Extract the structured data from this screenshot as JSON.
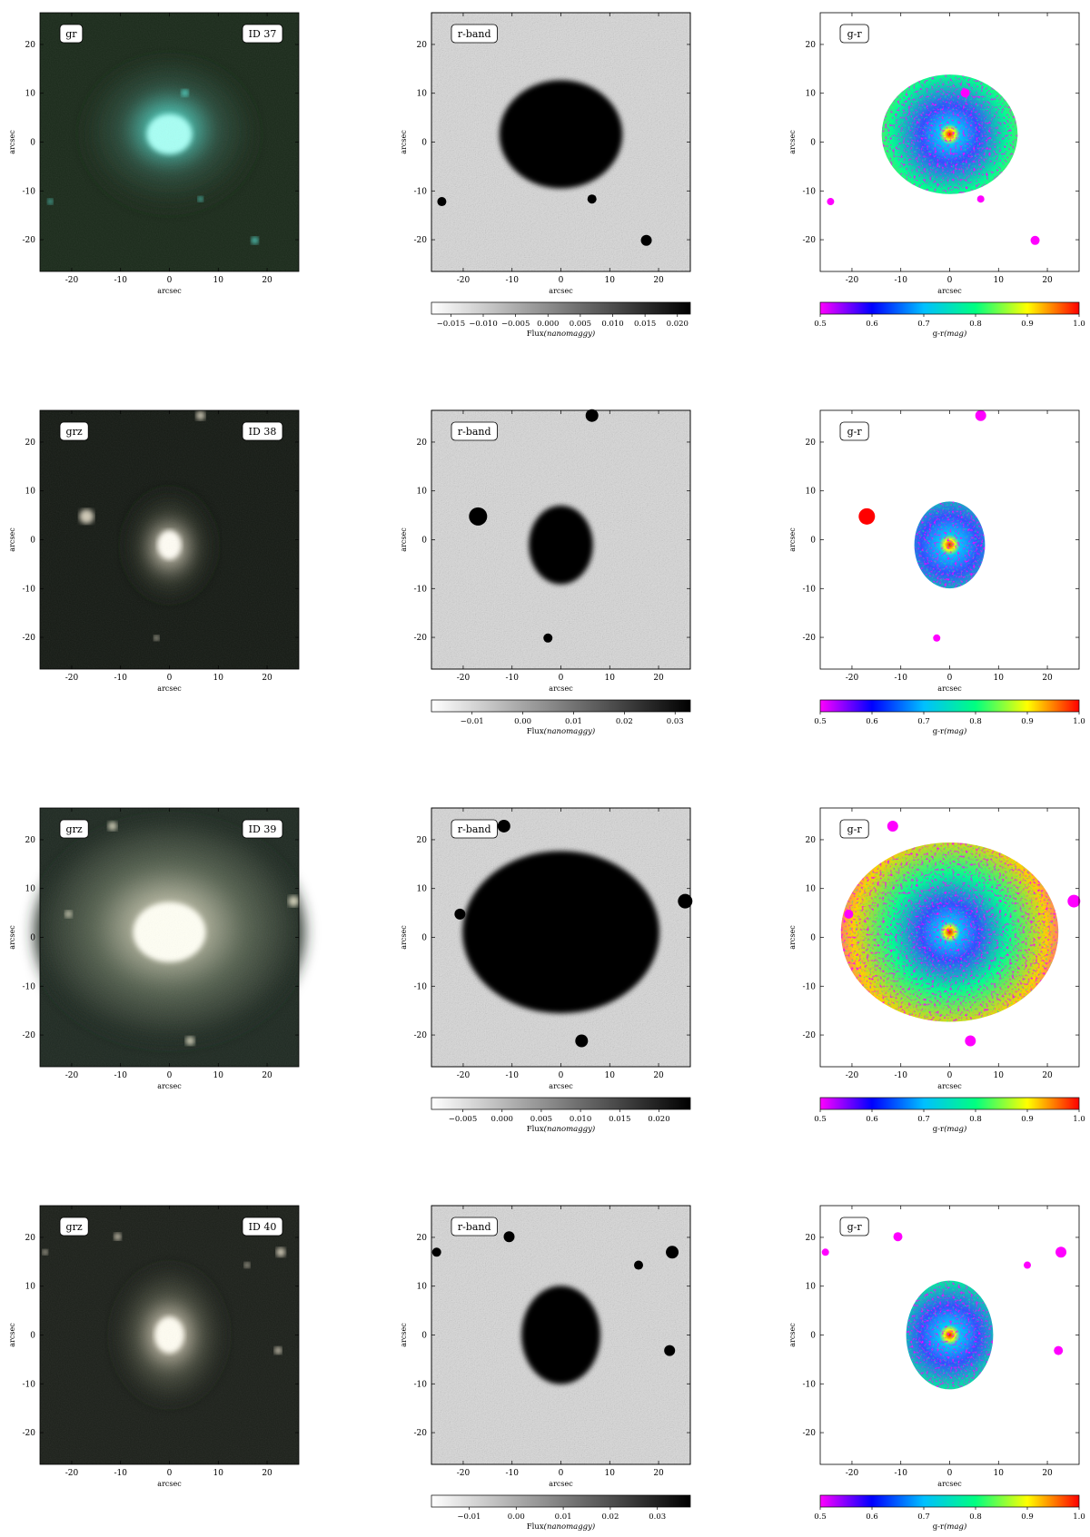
{
  "figure": {
    "rows": [
      {
        "id_label": "ID 37",
        "composite_label": "gr",
        "composite_colors": [
          "#1a2a1a",
          "#2a4a3a",
          "#4fd6c6",
          "#a8fff4"
        ],
        "rband_label": "r-band",
        "rband_cbar_ticks": [
          "-0.015",
          "-0.010",
          "-0.005",
          "0.000",
          "0.005",
          "0.010",
          "0.015",
          "0.020"
        ],
        "rband_range": [
          -0.018,
          0.022
        ],
        "gr_label": "g-r",
        "gr_cbar_ticks": [
          "0.5",
          "0.6",
          "0.7",
          "0.8",
          "0.9",
          "1.0"
        ]
      },
      {
        "id_label": "ID 38",
        "composite_label": "grz",
        "composite_colors": [
          "#151a14",
          "#33382c",
          "#cfc9b6",
          "#fffdf4"
        ],
        "rband_label": "r-band",
        "rband_cbar_ticks": [
          "-0.01",
          "0.00",
          "0.01",
          "0.02",
          "0.03"
        ],
        "rband_range": [
          -0.018,
          0.033
        ],
        "gr_label": "g-r",
        "gr_cbar_ticks": [
          "0.5",
          "0.6",
          "0.7",
          "0.8",
          "0.9",
          "1.0"
        ]
      },
      {
        "id_label": "ID 39",
        "composite_label": "grz",
        "composite_colors": [
          "#1f2a22",
          "#586452",
          "#cfcdb6",
          "#fffff4"
        ],
        "rband_label": "r-band",
        "rband_cbar_ticks": [
          "-0.005",
          "0.000",
          "0.005",
          "0.010",
          "0.015",
          "0.020"
        ],
        "rband_range": [
          -0.009,
          0.024
        ],
        "gr_label": "g-r",
        "gr_cbar_ticks": [
          "0.5",
          "0.6",
          "0.7",
          "0.8",
          "0.9",
          "1.0"
        ]
      },
      {
        "id_label": "ID 40",
        "composite_label": "grz",
        "composite_colors": [
          "#1c201a",
          "#464a3c",
          "#d8d0bc",
          "#fffdf2"
        ],
        "rband_label": "r-band",
        "rband_cbar_ticks": [
          "-0.01",
          "0.00",
          "0.01",
          "0.02",
          "0.03"
        ],
        "rband_range": [
          -0.018,
          0.037
        ],
        "gr_label": "g-r",
        "gr_cbar_ticks": [
          "0.5",
          "0.6",
          "0.7",
          "0.8",
          "0.9",
          "1.0"
        ]
      }
    ],
    "axis_ticks": [
      "-20",
      "-10",
      "0",
      "10",
      "20"
    ],
    "axis_tick_values": [
      -20,
      -10,
      0,
      10,
      20
    ],
    "axis_range": [
      -26.5,
      26.5
    ],
    "xlabel": "arcsec",
    "ylabel": "arcsec",
    "rband_cbar_label": "Flux",
    "rband_cbar_unit": "(nanomaggy)",
    "gr_cbar_label": "g-r",
    "gr_cbar_unit": "(mag)",
    "gr_colormap": [
      "#ff00ff",
      "#0000ff",
      "#00bfff",
      "#00ff80",
      "#ffff00",
      "#ff0000"
    ]
  }
}
